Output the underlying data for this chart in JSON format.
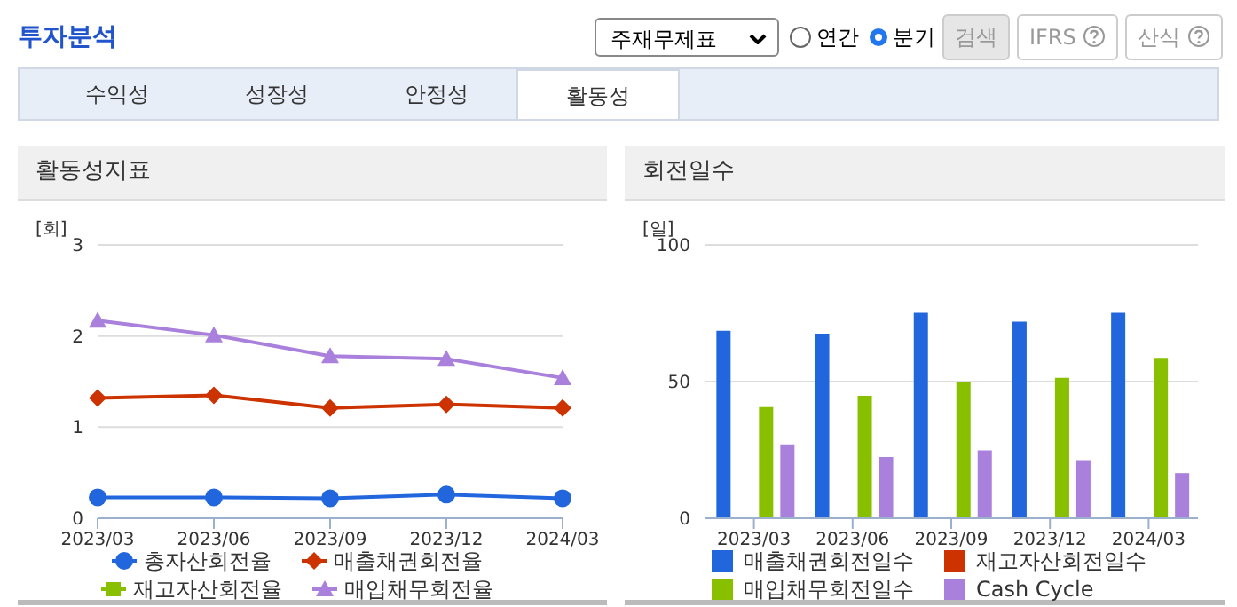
{
  "chart_data": [
    {
      "type": "other",
      "title": "투자분석",
      "annotations": [
        "주재무제표",
        "연간",
        "분기",
        "검색",
        "IFRS",
        "산식",
        "수익성",
        "성장성",
        "안정성",
        "활동성"
      ]
    },
    {
      "type": "line",
      "title": "활동성지표",
      "ylabel": "[회]",
      "categories": [
        "2023/03",
        "2023/06",
        "2023/09",
        "2023/12",
        "2024/03"
      ],
      "ylim": [
        0,
        3
      ],
      "yticks": [
        0,
        1,
        2,
        3
      ],
      "grid": "y",
      "legend": "bottom",
      "series": [
        {
          "name": "총자산회전율",
          "color": "#2266dd",
          "marker": "circle",
          "values": [
            0.23,
            0.23,
            0.22,
            0.26,
            0.22
          ]
        },
        {
          "name": "매출채권회전율",
          "color": "#cc3300",
          "marker": "diamond",
          "values": [
            1.32,
            1.35,
            1.21,
            1.25,
            1.21
          ]
        },
        {
          "name": "재고자산회전율",
          "color": "#88c000",
          "marker": "square",
          "values": [
            null,
            null,
            null,
            null,
            null
          ]
        },
        {
          "name": "매입채무회전율",
          "color": "#aa80dd",
          "marker": "triangle",
          "values": [
            2.17,
            2.01,
            1.78,
            1.75,
            1.54
          ]
        }
      ]
    },
    {
      "type": "bar",
      "title": "회전일수",
      "ylabel": "[일]",
      "categories": [
        "2023/03",
        "2023/06",
        "2023/09",
        "2023/12",
        "2024/03"
      ],
      "ylim": [
        0,
        100
      ],
      "yticks": [
        0,
        50,
        100
      ],
      "grid": "y",
      "legend": "bottom",
      "series": [
        {
          "name": "매출채권회전일수",
          "color": "#2266dd",
          "values": [
            68.6,
            67.5,
            75.2,
            71.9,
            75.2
          ]
        },
        {
          "name": "재고자산회전일수",
          "color": "#cc3300",
          "values": [
            null,
            null,
            null,
            null,
            null
          ]
        },
        {
          "name": "매입채무회전일수",
          "color": "#88c000",
          "values": [
            40.7,
            44.8,
            49.9,
            51.4,
            58.7
          ]
        },
        {
          "name": "Cash Cycle",
          "color": "#aa80dd",
          "values": [
            27.0,
            22.4,
            24.8,
            21.3,
            16.5
          ]
        }
      ]
    }
  ]
}
